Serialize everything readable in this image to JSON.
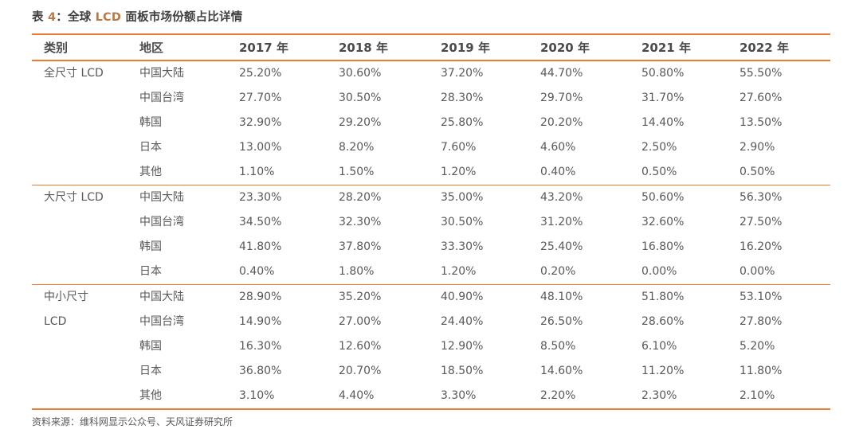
{
  "colors": {
    "accent_orange": "#ed7c31",
    "title_text": "#3f3f3f",
    "title_accent": "#be7846",
    "header_text": "#4a4a4a",
    "body_text": "#595959"
  },
  "title": {
    "full_text": "表 4：全球 LCD 面板市场份额占比详情",
    "segments": [
      {
        "text": "表 ",
        "accent": false
      },
      {
        "text": "4",
        "accent": true
      },
      {
        "text": "：全球 ",
        "accent": false
      },
      {
        "text": "LCD",
        "accent": true
      },
      {
        "text": " 面板市场份额占比详情",
        "accent": false
      }
    ]
  },
  "table": {
    "columns": [
      "类别",
      "地区",
      "2017 年",
      "2018 年",
      "2019 年",
      "2020 年",
      "2021 年",
      "2022 年"
    ],
    "sections": [
      {
        "category": "全尺寸 LCD",
        "rows": [
          {
            "region": "中国大陆",
            "values": [
              "25.20%",
              "30.60%",
              "37.20%",
              "44.70%",
              "50.80%",
              "55.50%"
            ]
          },
          {
            "region": "中国台湾",
            "values": [
              "27.70%",
              "30.50%",
              "28.30%",
              "29.70%",
              "31.70%",
              "27.60%"
            ]
          },
          {
            "region": "韩国",
            "values": [
              "32.90%",
              "29.20%",
              "25.80%",
              "20.20%",
              "14.40%",
              "13.50%"
            ]
          },
          {
            "region": "日本",
            "values": [
              "13.00%",
              "8.20%",
              "7.60%",
              "4.60%",
              "2.50%",
              "2.90%"
            ]
          },
          {
            "region": "其他",
            "values": [
              "1.10%",
              "1.50%",
              "1.20%",
              "0.40%",
              "0.50%",
              "0.50%"
            ]
          }
        ]
      },
      {
        "category": "大尺寸 LCD",
        "rows": [
          {
            "region": "中国大陆",
            "values": [
              "23.30%",
              "28.20%",
              "35.00%",
              "43.20%",
              "50.60%",
              "56.30%"
            ]
          },
          {
            "region": "中国台湾",
            "values": [
              "34.50%",
              "32.30%",
              "30.50%",
              "31.20%",
              "32.60%",
              "27.50%"
            ]
          },
          {
            "region": "韩国",
            "values": [
              "41.80%",
              "37.80%",
              "33.30%",
              "25.40%",
              "16.80%",
              "16.20%"
            ]
          },
          {
            "region": "日本",
            "values": [
              "0.40%",
              "1.80%",
              "1.20%",
              "0.20%",
              "0.00%",
              "0.00%"
            ]
          }
        ]
      },
      {
        "category": "中小尺寸 LCD",
        "rows": [
          {
            "region": "中国大陆",
            "values": [
              "28.90%",
              "35.20%",
              "40.90%",
              "48.10%",
              "51.80%",
              "53.10%"
            ]
          },
          {
            "region": "中国台湾",
            "values": [
              "14.90%",
              "27.00%",
              "24.40%",
              "26.50%",
              "28.60%",
              "27.80%"
            ]
          },
          {
            "region": "韩国",
            "values": [
              "16.30%",
              "12.60%",
              "12.90%",
              "8.50%",
              "6.10%",
              "5.20%"
            ]
          },
          {
            "region": "日本",
            "values": [
              "36.80%",
              "20.70%",
              "18.50%",
              "14.60%",
              "11.20%",
              "11.80%"
            ]
          },
          {
            "region": "其他",
            "values": [
              "3.10%",
              "4.40%",
              "3.30%",
              "2.20%",
              "2.30%",
              "2.10%"
            ]
          }
        ]
      }
    ]
  },
  "footer": {
    "source_note": "资料来源：维科网显示公众号、天风证券研究所"
  }
}
